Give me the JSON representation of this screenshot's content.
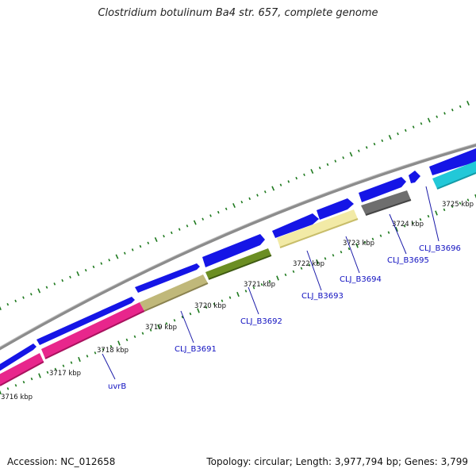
{
  "title": "Clostridium botulinum Ba4 str. 657, complete genome",
  "accession": "Accession: NC_012658",
  "summary": "Topology: circular; Length: 3,977,794 bp; Genes: 3,799",
  "colors": {
    "backbone": "#8c8c8c",
    "cds_forward": "#1515e6",
    "tick": "#1f7a1f",
    "gene_label": "#1010c0",
    "connector": "#1a1aa8"
  },
  "kbp_labels": [
    "3716 kbp",
    "3717 kbp",
    "3718 kbp",
    "3719 kbp",
    "3720 kbp",
    "3721 kbp",
    "3722 kbp",
    "3723 kbp",
    "3724 kbp",
    "3725 kbp"
  ],
  "gene_labels": [
    "uvrB",
    "CLJ_B3691",
    "CLJ_B3692",
    "CLJ_B3693",
    "CLJ_B3694",
    "CLJ_B3695",
    "CLJ_B3696"
  ],
  "gene_features": [
    {
      "name": "uvrB",
      "color": "#e8268c"
    },
    {
      "name": "CLJ_B3691",
      "color": "#c0b87a"
    },
    {
      "name": "CLJ_B3692",
      "color": "#6b8e23"
    },
    {
      "name": "CLJ_B3693",
      "color": "#f2eaa6"
    },
    {
      "name": "CLJ_B3694",
      "color": "#f2eaa6"
    },
    {
      "name": "CLJ_B3695",
      "color": "#6e6e6e"
    },
    {
      "name": "CLJ_B3696",
      "color": "#22c8d8"
    }
  ]
}
